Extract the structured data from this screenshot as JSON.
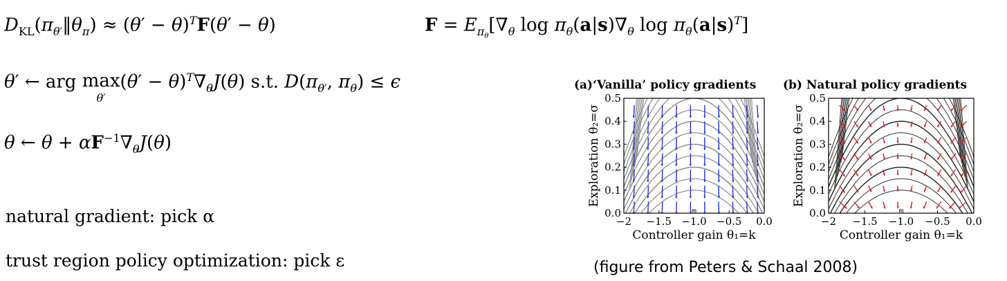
{
  "equations": {
    "kl": "D_KL(π_θ′‖θ_π) ≈ (θ′ − θ)^T F(θ′ − θ)",
    "fisher": "F = E_πθ[∇θ log πθ(a|s) ∇θ log πθ(a|s)^T]",
    "argmax": "θ′ ← arg max_θ′ (θ′ − θ)^T ∇θ J(θ) s.t. D(πθ′, πθ) ≤ ε",
    "update": "θ ← θ + α F^−1 ∇θ J(θ)"
  },
  "notes": {
    "natural_gradient": "natural gradient: pick α",
    "trpo": "trust region policy optimization: pick ε"
  },
  "figure": {
    "caption": "(figure from Peters & Schaal 2008)",
    "panel_a_title": "(a)‘Vanilla’ policy gradients",
    "panel_b_title": "(b) Natural policy gradients",
    "ylabel": "Exploration θ₂=σ",
    "xlabel": "Controller gain θ₁=k",
    "y_ticks": [
      "0.0",
      "0.1",
      "0.2",
      "0.3",
      "0.4",
      "0.5"
    ],
    "x_ticks": [
      "−2",
      "−1.5",
      "−1.0",
      "−0.5",
      "0.0"
    ],
    "arrow_colors": {
      "vanilla": "#2233dd",
      "natural": "#e02020"
    }
  },
  "chart_data": [
    {
      "type": "contour",
      "title": "(a)‘Vanilla’ policy gradients",
      "xlabel": "Controller gain θ₁=k",
      "ylabel": "Exploration θ₂=σ",
      "xlim": [
        -2,
        0
      ],
      "ylim": [
        0,
        0.5
      ],
      "contour_peaks": [
        0.5,
        0.4,
        0.3,
        0.2
      ],
      "arrow_color": "#2233dd"
    },
    {
      "type": "contour",
      "title": "(b) Natural policy gradients",
      "xlabel": "Controller gain θ₁=k",
      "ylabel": "Exploration θ₂=σ",
      "xlim": [
        -2,
        0
      ],
      "ylim": [
        0,
        0.5
      ],
      "contour_peaks": [
        0.5,
        0.4,
        0.3,
        0.2
      ],
      "arrow_color": "#e02020"
    }
  ]
}
